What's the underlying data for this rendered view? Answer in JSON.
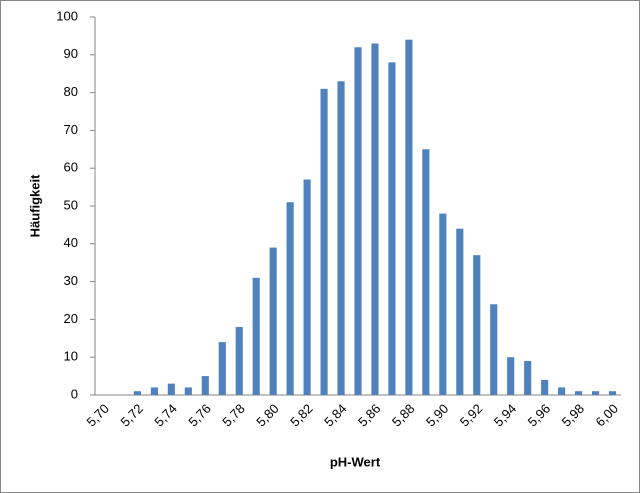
{
  "chart_data": {
    "type": "bar",
    "x_label": "pH-Wert",
    "y_label": "Häufigkeit",
    "categories": [
      "5,70",
      null,
      "5,72",
      null,
      "5,74",
      null,
      "5,76",
      null,
      "5,78",
      null,
      "5,80",
      null,
      "5,82",
      null,
      "5,84",
      null,
      "5,86",
      null,
      "5,88",
      null,
      "5,90",
      null,
      "5,92",
      null,
      "5,94",
      null,
      "5,96",
      null,
      "5,98",
      null,
      "6,00"
    ],
    "values": [
      0,
      0,
      1,
      2,
      3,
      2,
      5,
      14,
      18,
      31,
      39,
      51,
      57,
      81,
      83,
      92,
      93,
      88,
      94,
      65,
      48,
      44,
      37,
      24,
      10,
      9,
      4,
      2,
      1,
      1,
      1
    ],
    "color": "#4f81bd",
    "ylim": [
      0,
      100
    ],
    "yticks": [
      0,
      10,
      20,
      30,
      40,
      50,
      60,
      70,
      80,
      90,
      100
    ],
    "grid": false
  }
}
